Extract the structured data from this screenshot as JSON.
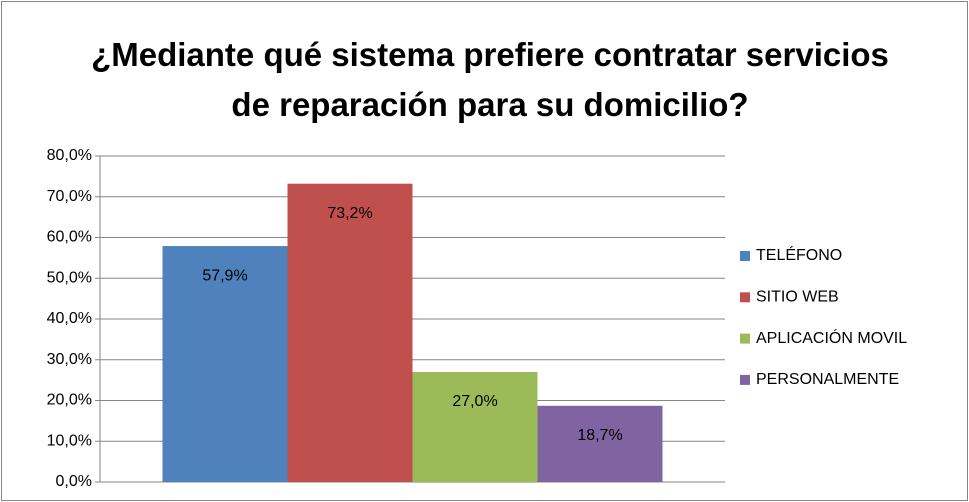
{
  "chart_data": {
    "type": "bar",
    "title": "¿Mediante qué sistema prefiere contratar servicios de reparación para su domicilio?",
    "categories": [
      null
    ],
    "series": [
      {
        "name": "TELÉFONO",
        "color": "#4f81bd",
        "values": [
          57.9
        ],
        "value_labels": [
          "57,9%"
        ]
      },
      {
        "name": "SITIO WEB",
        "color": "#c0504d",
        "values": [
          73.2
        ],
        "value_labels": [
          "73,2%"
        ]
      },
      {
        "name": "APLICACIÓN MOVIL",
        "color": "#9bbb59",
        "values": [
          27.0
        ],
        "value_labels": [
          "27,0%"
        ]
      },
      {
        "name": "PERSONALMENTE",
        "color": "#8064a2",
        "values": [
          18.7
        ],
        "value_labels": [
          "18,7%"
        ]
      }
    ],
    "ylim": [
      0,
      80
    ],
    "yticks": [
      {
        "value": 0,
        "label": "0,0%"
      },
      {
        "value": 10,
        "label": "10,0%"
      },
      {
        "value": 20,
        "label": "20,0%"
      },
      {
        "value": 30,
        "label": "30,0%"
      },
      {
        "value": 40,
        "label": "40,0%"
      },
      {
        "value": 50,
        "label": "50,0%"
      },
      {
        "value": 60,
        "label": "60,0%"
      },
      {
        "value": 70,
        "label": "70,0%"
      },
      {
        "value": 80,
        "label": "80,0%"
      }
    ],
    "grid": true,
    "legend": "right"
  }
}
